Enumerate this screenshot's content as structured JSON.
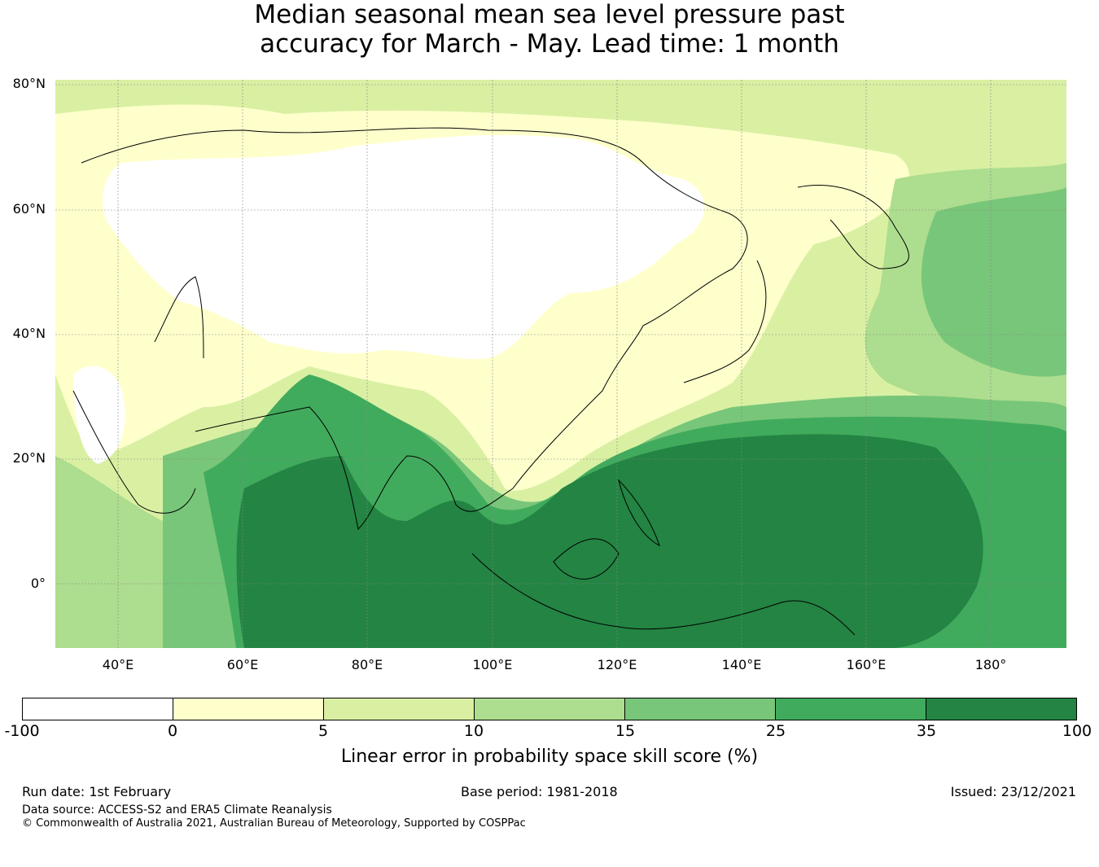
{
  "title": {
    "line1": "Median seasonal mean sea level pressure past",
    "line2": "accuracy for March - May. Lead time: 1 month"
  },
  "map": {
    "lat_labels": [
      "80°N",
      "60°N",
      "40°N",
      "20°N",
      "0°"
    ],
    "lon_labels": [
      "40°E",
      "60°E",
      "80°E",
      "100°E",
      "120°E",
      "140°E",
      "160°E",
      "180°"
    ],
    "extent": {
      "lon_min": 30,
      "lon_max": 192,
      "lat_min": -10,
      "lat_max": 80
    }
  },
  "colorbar": {
    "ticks": [
      "-100",
      "0",
      "5",
      "10",
      "15",
      "25",
      "35",
      "100"
    ],
    "colors": [
      "#ffffff",
      "#ffffcc",
      "#d9f0a3",
      "#addd8e",
      "#78c679",
      "#41ab5d",
      "#238443"
    ],
    "label": "Linear error in probability space skill score (%)"
  },
  "footer": {
    "run_date": "Run date: 1st February",
    "base_period": "Base period: 1981-2018",
    "issued": "Issued: 23/12/2021",
    "data_source": "Data source: ACCESS-S2 and ERA5 Climate Reanalysis",
    "copyright": "© Commonwealth of Australia 2021, Australian Bureau of Meteorology, Supported by COSPPac"
  }
}
